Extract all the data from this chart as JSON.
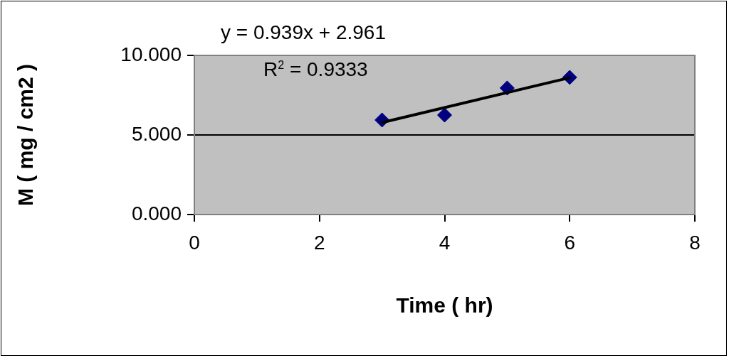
{
  "chart_data": {
    "type": "scatter",
    "xlabel": "Time ( hr)",
    "ylabel": "M ( mg / cm2 )",
    "annotations": [
      "y = 0.939x + 2.961",
      "R$^{2}$ = 0.9333"
    ],
    "series": [
      {
        "color": "#000080",
        "x": [
          3,
          4,
          5,
          6
        ],
        "values": [
          5.94,
          6.25,
          7.95,
          8.62
        ],
        "marker": "diamond"
      },
      {
        "type": "line",
        "color": "#000000",
        "x": [
          3,
          6
        ],
        "values": [
          5.78,
          8.6
        ],
        "marker": "none"
      }
    ],
    "xlim": [
      0,
      8
    ],
    "xticks": [
      0,
      2,
      4,
      6,
      8
    ],
    "ylim": [
      0,
      10
    ],
    "yticks": [
      {
        "value": 0,
        "label": "0.000"
      },
      {
        "value": 5,
        "label": "5.000"
      },
      {
        "value": 10,
        "label": "10.000"
      }
    ],
    "grid": "y",
    "legend": false
  }
}
